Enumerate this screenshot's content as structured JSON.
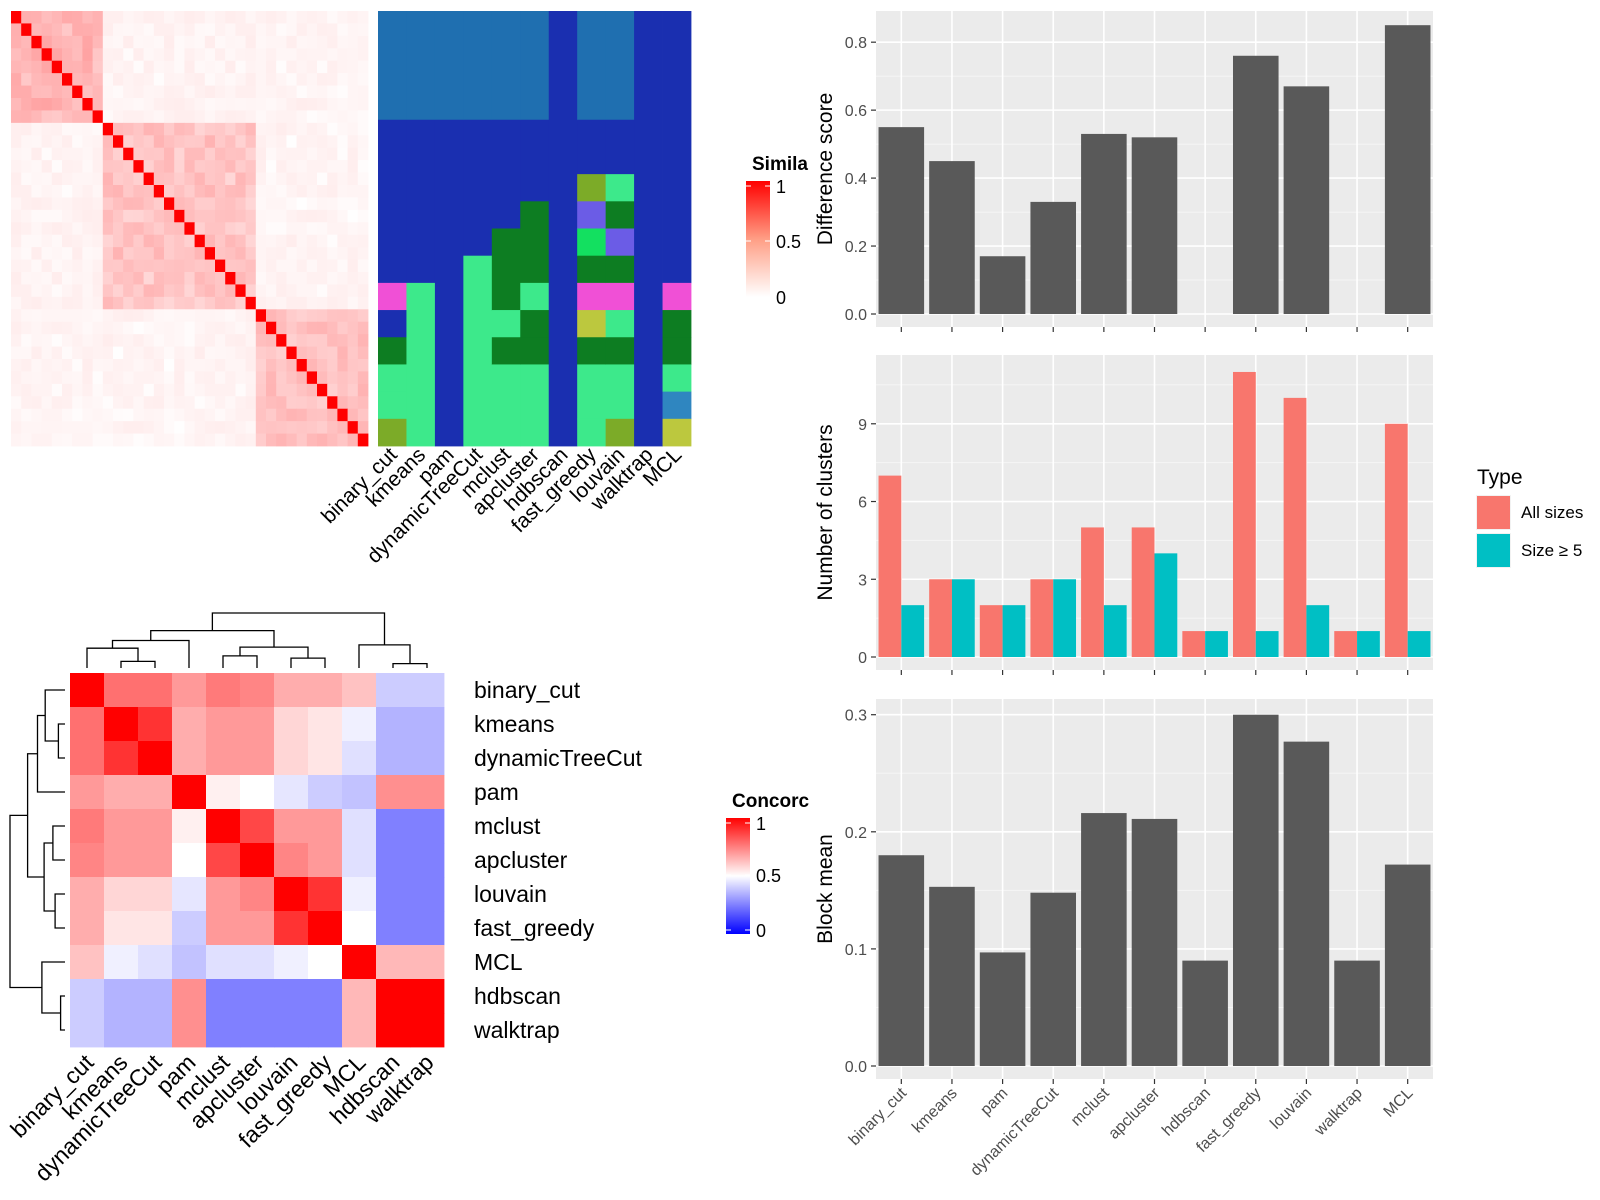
{
  "methods": [
    "binary_cut",
    "kmeans",
    "pam",
    "dynamicTreeCut",
    "mclust",
    "apcluster",
    "hdbscan",
    "fast_greedy",
    "louvain",
    "walktrap",
    "MCL"
  ],
  "similarity_heatmap": {
    "legend_title": "Simila",
    "legend_ticks": [
      "1",
      "0.5",
      "0"
    ],
    "colors": {
      "low": "#ffffff",
      "high": "#ff0000"
    },
    "n_terms": 35
  },
  "cluster_palette": [
    "#1f6fb0",
    "#1a2fb0",
    "#0d7d22",
    "#3de98b",
    "#f050d6",
    "#7cab28",
    "#bcc83e",
    "#13e060",
    "#6b5ce6",
    "#2f86c0"
  ],
  "membership_columns": [
    {
      "method": "binary_cut",
      "runs": [
        [
          0,
          4,
          0
        ],
        [
          4,
          10,
          1
        ],
        [
          10,
          11,
          4
        ],
        [
          11,
          12,
          1
        ],
        [
          12,
          13,
          2
        ],
        [
          13,
          14,
          3
        ],
        [
          14,
          15,
          3
        ],
        [
          15,
          16,
          5
        ]
      ]
    },
    {
      "method": "kmeans",
      "runs": [
        [
          0,
          4,
          0
        ],
        [
          4,
          10,
          1
        ],
        [
          10,
          16,
          3
        ]
      ]
    },
    {
      "method": "pam",
      "runs": [
        [
          0,
          4,
          0
        ],
        [
          4,
          16,
          1
        ]
      ]
    },
    {
      "method": "dynamicTreeCut",
      "runs": [
        [
          0,
          4,
          0
        ],
        [
          4,
          9,
          1
        ],
        [
          9,
          16,
          3
        ]
      ]
    },
    {
      "method": "mclust",
      "runs": [
        [
          0,
          4,
          0
        ],
        [
          4,
          8,
          1
        ],
        [
          8,
          11,
          2
        ],
        [
          11,
          12,
          3
        ],
        [
          12,
          13,
          2
        ],
        [
          13,
          16,
          3
        ]
      ]
    },
    {
      "method": "apcluster",
      "runs": [
        [
          0,
          4,
          0
        ],
        [
          4,
          7,
          1
        ],
        [
          7,
          8,
          2
        ],
        [
          8,
          10,
          2
        ],
        [
          10,
          11,
          3
        ],
        [
          11,
          12,
          2
        ],
        [
          12,
          13,
          2
        ],
        [
          13,
          16,
          3
        ]
      ]
    },
    {
      "method": "hdbscan",
      "runs": [
        [
          0,
          16,
          1
        ]
      ]
    },
    {
      "method": "fast_greedy",
      "runs": [
        [
          0,
          4,
          0
        ],
        [
          4,
          6,
          1
        ],
        [
          6,
          7,
          5
        ],
        [
          7,
          8,
          8
        ],
        [
          8,
          9,
          7
        ],
        [
          9,
          10,
          2
        ],
        [
          10,
          11,
          4
        ],
        [
          11,
          12,
          6
        ],
        [
          12,
          13,
          2
        ],
        [
          13,
          15,
          3
        ],
        [
          15,
          16,
          3
        ]
      ]
    },
    {
      "method": "louvain",
      "runs": [
        [
          0,
          4,
          0
        ],
        [
          4,
          6,
          1
        ],
        [
          6,
          7,
          3
        ],
        [
          7,
          8,
          2
        ],
        [
          8,
          9,
          8
        ],
        [
          9,
          10,
          2
        ],
        [
          10,
          11,
          4
        ],
        [
          11,
          12,
          3
        ],
        [
          12,
          13,
          2
        ],
        [
          13,
          15,
          3
        ],
        [
          15,
          16,
          5
        ]
      ]
    },
    {
      "method": "walktrap",
      "runs": [
        [
          0,
          16,
          1
        ]
      ]
    },
    {
      "method": "MCL",
      "runs": [
        [
          0,
          10,
          1
        ],
        [
          10,
          11,
          4
        ],
        [
          11,
          12,
          2
        ],
        [
          12,
          13,
          2
        ],
        [
          13,
          14,
          3
        ],
        [
          14,
          15,
          9
        ],
        [
          15,
          16,
          6
        ]
      ]
    }
  ],
  "concordance": {
    "legend_title": "Concorc",
    "legend_ticks": [
      "1",
      "0.5",
      "0"
    ],
    "order": [
      "binary_cut",
      "kmeans",
      "dynamicTreeCut",
      "pam",
      "mclust",
      "apcluster",
      "louvain",
      "fast_greedy",
      "MCL",
      "hdbscan",
      "walktrap"
    ],
    "matrix": [
      [
        1.0,
        0.78,
        0.78,
        0.7,
        0.76,
        0.74,
        0.66,
        0.66,
        0.62,
        0.4,
        0.4
      ],
      [
        0.78,
        1.0,
        0.9,
        0.66,
        0.7,
        0.7,
        0.58,
        0.55,
        0.47,
        0.35,
        0.35
      ],
      [
        0.78,
        0.9,
        1.0,
        0.66,
        0.7,
        0.7,
        0.58,
        0.55,
        0.44,
        0.35,
        0.35
      ],
      [
        0.7,
        0.66,
        0.66,
        1.0,
        0.53,
        0.5,
        0.45,
        0.4,
        0.38,
        0.72,
        0.72
      ],
      [
        0.76,
        0.7,
        0.7,
        0.53,
        1.0,
        0.86,
        0.7,
        0.7,
        0.44,
        0.25,
        0.25
      ],
      [
        0.74,
        0.7,
        0.7,
        0.5,
        0.86,
        1.0,
        0.74,
        0.7,
        0.44,
        0.25,
        0.25
      ],
      [
        0.66,
        0.58,
        0.58,
        0.45,
        0.7,
        0.74,
        1.0,
        0.9,
        0.47,
        0.25,
        0.25
      ],
      [
        0.66,
        0.55,
        0.55,
        0.4,
        0.7,
        0.7,
        0.9,
        1.0,
        0.5,
        0.25,
        0.25
      ],
      [
        0.62,
        0.47,
        0.44,
        0.38,
        0.44,
        0.44,
        0.47,
        0.5,
        1.0,
        0.64,
        0.64
      ],
      [
        0.4,
        0.35,
        0.35,
        0.72,
        0.25,
        0.25,
        0.25,
        0.25,
        0.64,
        1.0,
        1.0
      ],
      [
        0.4,
        0.35,
        0.35,
        0.72,
        0.25,
        0.25,
        0.25,
        0.25,
        0.64,
        1.0,
        1.0
      ]
    ]
  },
  "chart_data": [
    {
      "type": "bar",
      "categories": [
        "binary_cut",
        "kmeans",
        "pam",
        "dynamicTreeCut",
        "mclust",
        "apcluster",
        "hdbscan",
        "fast_greedy",
        "louvain",
        "walktrap",
        "MCL"
      ],
      "values": [
        0.55,
        0.45,
        0.17,
        0.33,
        0.53,
        0.52,
        0,
        0.76,
        0.67,
        0,
        0.85
      ],
      "ylabel": "Difference score",
      "ylim": [
        0,
        0.88
      ],
      "yticks": [
        0.0,
        0.2,
        0.4,
        0.6,
        0.8
      ],
      "ytick_labels": [
        "0.0",
        "0.2",
        "0.4",
        "0.6",
        "0.8"
      ],
      "grid": true,
      "color": "#595959"
    },
    {
      "type": "bar",
      "categories": [
        "binary_cut",
        "kmeans",
        "pam",
        "dynamicTreeCut",
        "mclust",
        "apcluster",
        "hdbscan",
        "fast_greedy",
        "louvain",
        "walktrap",
        "MCL"
      ],
      "series": [
        {
          "name": "All sizes",
          "values": [
            7,
            3,
            2,
            3,
            5,
            5,
            1,
            11,
            10,
            1,
            9
          ],
          "color": "#f8766d"
        },
        {
          "name": "Size ≥ 5",
          "values": [
            2,
            3,
            2,
            3,
            2,
            4,
            1,
            1,
            2,
            1,
            1
          ],
          "color": "#00bfc4"
        }
      ],
      "ylabel": "Number of clusters",
      "ylim": [
        0,
        11.5
      ],
      "yticks": [
        0,
        3,
        6,
        9
      ],
      "ytick_labels": [
        "0",
        "3",
        "6",
        "9"
      ],
      "legend_title": "Type",
      "legend": "right",
      "grid": true
    },
    {
      "type": "bar",
      "categories": [
        "binary_cut",
        "kmeans",
        "pam",
        "dynamicTreeCut",
        "mclust",
        "apcluster",
        "hdbscan",
        "fast_greedy",
        "louvain",
        "walktrap",
        "MCL"
      ],
      "values": [
        0.18,
        0.153,
        0.097,
        0.148,
        0.216,
        0.211,
        0.09,
        0.3,
        0.277,
        0.09,
        0.172
      ],
      "ylabel": "Block mean",
      "ylim": [
        0,
        0.31
      ],
      "yticks": [
        0.0,
        0.1,
        0.2,
        0.3
      ],
      "ytick_labels": [
        "0.0",
        "0.1",
        "0.2",
        "0.3"
      ],
      "grid": true,
      "color": "#595959"
    }
  ]
}
